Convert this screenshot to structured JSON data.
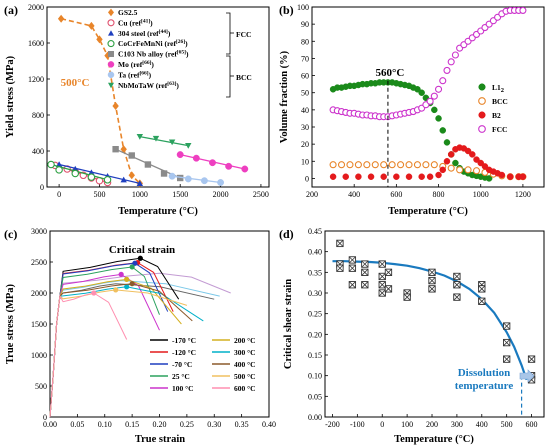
{
  "chart_data": [
    {
      "panel": "(a)",
      "type": "scatter",
      "xlabel": "Temperature (°C)",
      "ylabel": "Yield stress (MPa)",
      "xlim": [
        -150,
        2600
      ],
      "ylim": [
        0,
        2000
      ],
      "xticks": [
        "0",
        "500",
        "1000",
        "1500",
        "2000",
        "2500"
      ],
      "xtick_values": [
        0,
        500,
        1000,
        1500,
        2000,
        2500
      ],
      "yticks": [
        "0",
        "400",
        "800",
        "1200",
        "1600",
        "2000"
      ],
      "ytick_values": [
        0,
        400,
        800,
        1200,
        1600,
        2000
      ],
      "annotations": [
        {
          "text": "500°C",
          "color": "#e8852a"
        }
      ],
      "group_labels": [
        {
          "text": "FCC"
        },
        {
          "text": "BCC"
        }
      ],
      "series": [
        {
          "name": "GS2.5",
          "marker": "diamond",
          "color": "#e8852a",
          "dashed_trend": true,
          "x": [
            25,
            400,
            500,
            600,
            700,
            800,
            900,
            1000
          ],
          "y": [
            1870,
            1790,
            1640,
            1460,
            900,
            420,
            130,
            40
          ]
        },
        {
          "name": "Cu (ref[41])",
          "marker": "circle-open",
          "color": "#e0506e",
          "x": [
            -50,
            100,
            200,
            300,
            400,
            500,
            600
          ],
          "y": [
            240,
            200,
            170,
            130,
            100,
            70,
            50
          ]
        },
        {
          "name": "304 steel (ref[44])",
          "marker": "triangle",
          "color": "#1f3fbf",
          "x": [
            0,
            200,
            400,
            600,
            800,
            1000
          ],
          "y": [
            250,
            200,
            160,
            120,
            80,
            40
          ]
        },
        {
          "name": "CoCrFeMnNi (ref[26])",
          "marker": "circle-open",
          "color": "#2ea043",
          "x": [
            -100,
            0,
            200,
            400,
            600
          ],
          "y": [
            250,
            190,
            150,
            110,
            80
          ]
        },
        {
          "name": "C103 Nb alloy (ref[65])",
          "marker": "square",
          "color": "#8a8a8a",
          "x": [
            700,
            900,
            1100,
            1300,
            1500
          ],
          "y": [
            420,
            350,
            250,
            150,
            100
          ]
        },
        {
          "name": "Mo (ref[66])",
          "marker": "circle",
          "color": "#ee3fc0",
          "x": [
            1500,
            1700,
            1900,
            2100,
            2300
          ],
          "y": [
            360,
            320,
            270,
            230,
            200
          ]
        },
        {
          "name": "Ta (ref[66])",
          "marker": "circle",
          "color": "#a8c6ef",
          "x": [
            1400,
            1600,
            1800,
            2000
          ],
          "y": [
            120,
            90,
            70,
            50
          ]
        },
        {
          "name": "NbMoTaW (ref[63])",
          "marker": "triangle-down",
          "color": "#2ca25f",
          "x": [
            1000,
            1200,
            1400,
            1600
          ],
          "y": [
            560,
            540,
            500,
            460
          ]
        }
      ],
      "legend_entries": [
        {
          "base": "GS2.5",
          "sup": ""
        },
        {
          "base": "Cu (ref",
          "sup": "[41]",
          "tail": ")"
        },
        {
          "base": "304 steel (ref",
          "sup": "[44]",
          "tail": ")"
        },
        {
          "base": "CoCrFeMnNi (ref",
          "sup": "[26]",
          "tail": ")"
        },
        {
          "base": "C103 Nb alloy (ref",
          "sup": "[65]",
          "tail": ")"
        },
        {
          "base": "Mo (ref",
          "sup": "[66]",
          "tail": ")"
        },
        {
          "base": "Ta (ref",
          "sup": "[66]",
          "tail": ")"
        },
        {
          "base": "NbMoTaW (ref",
          "sup": "[63]",
          "tail": ")"
        }
      ]
    },
    {
      "panel": "(b)",
      "type": "scatter",
      "xlabel": "Temperature (°C)",
      "ylabel": "Volume fraction (%)",
      "xlim": [
        200,
        1300
      ],
      "ylim": [
        -5,
        100
      ],
      "xticks": [
        "200",
        "400",
        "600",
        "800",
        "1000",
        "1200"
      ],
      "xtick_values": [
        200,
        400,
        600,
        800,
        1000,
        1200
      ],
      "yticks": [
        "0",
        "10",
        "20",
        "30",
        "40",
        "50",
        "60",
        "70",
        "80",
        "90",
        "100"
      ],
      "ytick_values": [
        0,
        10,
        20,
        30,
        40,
        50,
        60,
        70,
        80,
        90,
        100
      ],
      "annotations": [
        {
          "text": "560°C",
          "x": 560
        }
      ],
      "series": [
        {
          "name": "L1",
          "sub": "2",
          "color": "#1a8a1a",
          "marker": "circle",
          "x": [
            300,
            320,
            340,
            360,
            380,
            400,
            420,
            440,
            460,
            480,
            500,
            520,
            540,
            560,
            580,
            600,
            620,
            640,
            660,
            680,
            700,
            720,
            740,
            760,
            780,
            800,
            820,
            840,
            860,
            880,
            900,
            920,
            940,
            960,
            980,
            1000,
            1020,
            1040
          ],
          "y": [
            52,
            53,
            53,
            53.5,
            54,
            54,
            54.5,
            55,
            55,
            55.5,
            55.5,
            56,
            56,
            56,
            56,
            55.5,
            55,
            54.5,
            54,
            53,
            52,
            50,
            47,
            44,
            40,
            35,
            28,
            21,
            14,
            9,
            6,
            4,
            3,
            2,
            1.5,
            1,
            0.5,
            0
          ]
        },
        {
          "name": "BCC",
          "color": "#e8852a",
          "marker": "circle-open",
          "x": [
            300,
            340,
            380,
            420,
            460,
            500,
            540,
            580,
            620,
            660,
            700,
            740,
            780,
            820,
            860,
            900,
            940,
            980,
            1020,
            1060,
            1100,
            1140,
            1180,
            1200
          ],
          "y": [
            8,
            8,
            8,
            8,
            8,
            8,
            8,
            8,
            8,
            8,
            8,
            8,
            8,
            7,
            6,
            5,
            5,
            4.5,
            3.5,
            2.5,
            1.5,
            1,
            1,
            1
          ]
        },
        {
          "name": "B2",
          "color": "#e41a1c",
          "marker": "circle",
          "x": [
            300,
            360,
            420,
            480,
            540,
            600,
            660,
            720,
            760,
            800,
            820,
            840,
            860,
            880,
            900,
            920,
            940,
            960,
            980,
            1000,
            1020,
            1040,
            1060,
            1080,
            1100,
            1140,
            1180,
            1200
          ],
          "y": [
            1,
            1,
            1,
            1,
            1,
            1,
            1,
            1,
            1,
            2,
            5,
            10,
            14,
            17,
            18,
            17.5,
            16,
            14,
            11,
            9,
            7,
            5,
            4,
            3,
            2,
            1,
            1,
            1
          ]
        },
        {
          "name": "FCC",
          "color": "#cc33cc",
          "marker": "circle-open",
          "x": [
            300,
            320,
            340,
            360,
            380,
            400,
            420,
            440,
            460,
            480,
            500,
            520,
            540,
            560,
            580,
            600,
            620,
            640,
            660,
            680,
            700,
            720,
            740,
            760,
            780,
            800,
            820,
            840,
            860,
            880,
            900,
            920,
            940,
            960,
            980,
            1000,
            1020,
            1040,
            1060,
            1080,
            1100,
            1120,
            1140,
            1160,
            1180,
            1200
          ],
          "y": [
            40,
            39.5,
            39,
            38.5,
            38,
            38,
            37.5,
            37,
            37,
            36.5,
            36.5,
            36,
            36,
            36,
            36.5,
            37,
            37.5,
            38,
            38.5,
            39,
            40,
            41,
            43,
            45,
            48,
            52,
            57,
            63,
            68,
            72,
            76,
            78,
            80,
            82,
            84,
            86,
            88,
            90,
            92,
            94,
            96,
            97.5,
            98,
            98,
            98,
            98
          ]
        }
      ]
    },
    {
      "panel": "(c)",
      "type": "line",
      "xlabel": "True strain",
      "ylabel": "True stress (MPa)",
      "xlim": [
        0,
        0.4
      ],
      "ylim": [
        0,
        3000
      ],
      "xticks": [
        "0.00",
        "0.05",
        "0.10",
        "0.15",
        "0.20",
        "0.25",
        "0.30",
        "0.35",
        "0.40"
      ],
      "xtick_values": [
        0,
        0.05,
        0.1,
        0.15,
        0.2,
        0.25,
        0.3,
        0.35,
        0.4
      ],
      "yticks": [
        "0",
        "500",
        "1000",
        "1500",
        "2000",
        "2500",
        "3000"
      ],
      "ytick_values": [
        0,
        500,
        1000,
        1500,
        2000,
        2500,
        3000
      ],
      "annotations": [
        {
          "text": "Critical strain"
        }
      ],
      "series": [
        {
          "name": "-170 °C",
          "color": "#000000",
          "peak_x": 0.165,
          "peak_y": 2560,
          "end_x": 0.235,
          "end_y": 1900
        },
        {
          "name": "-120 °C",
          "color": "#e41a1c",
          "peak_x": 0.16,
          "peak_y": 2490,
          "end_x": 0.225,
          "end_y": 1700
        },
        {
          "name": "-70 °C",
          "color": "#1f3fbf",
          "peak_x": 0.155,
          "peak_y": 2480,
          "end_x": 0.215,
          "end_y": 1700
        },
        {
          "name": "25 °C",
          "color": "#2ca25f",
          "peak_x": 0.15,
          "peak_y": 2420,
          "end_x": 0.2,
          "end_y": 1650
        },
        {
          "name": "100 °C",
          "color": "#cc33cc",
          "peak_x": 0.13,
          "peak_y": 2300,
          "end_x": 0.2,
          "end_y": 1400
        },
        {
          "name": "200 °C",
          "color": "#d4b020",
          "peak_x": 0.14,
          "peak_y": 2220,
          "end_x": 0.24,
          "end_y": 1500
        },
        {
          "name": "300 °C",
          "color": "#00b0c8",
          "peak_x": 0.14,
          "peak_y": 2100,
          "end_x": 0.28,
          "end_y": 1550
        },
        {
          "name": "400 °C",
          "color": "#8b5a2b",
          "peak_x": 0.15,
          "peak_y": 2150,
          "end_x": 0.26,
          "end_y": 1550
        },
        {
          "name": "500 °C",
          "color": "#f0c060",
          "peak_x": 0.12,
          "peak_y": 2050,
          "end_x": 0.25,
          "end_y": 1800
        },
        {
          "name": "600 °C",
          "color": "#ff8fb0",
          "peak_x": 0.08,
          "peak_y": 2000,
          "end_x": 0.14,
          "end_y": 1250
        }
      ],
      "extra_series_colors": [
        "#c39bd3",
        "#7bc8e8",
        "#666666"
      ],
      "extra_series": [
        {
          "color": "#c39bd3",
          "peak_x": 0.2,
          "peak_y": 2320,
          "end_x": 0.33,
          "end_y": 2000
        },
        {
          "color": "#7bc8e8",
          "peak_x": 0.13,
          "peak_y": 2200,
          "end_x": 0.31,
          "end_y": 1950
        },
        {
          "color": "#666666",
          "peak_x": 0.12,
          "peak_y": 2150,
          "end_x": 0.3,
          "end_y": 1900
        }
      ]
    },
    {
      "panel": "(d)",
      "type": "scatter",
      "xlabel": "Temperature (°C)",
      "ylabel": "Critical shear strain",
      "xlim": [
        -230,
        650
      ],
      "ylim": [
        0,
        0.45
      ],
      "xticks": [
        "-200",
        "-100",
        "0",
        "100",
        "200",
        "300",
        "400",
        "500",
        "600"
      ],
      "xtick_values": [
        -200,
        -100,
        0,
        100,
        200,
        300,
        400,
        500,
        600
      ],
      "yticks": [
        "0.00",
        "0.05",
        "0.10",
        "0.15",
        "0.20",
        "0.25",
        "0.30",
        "0.35",
        "0.40",
        "0.45"
      ],
      "ytick_values": [
        0,
        0.05,
        0.1,
        0.15,
        0.2,
        0.25,
        0.3,
        0.35,
        0.4,
        0.45
      ],
      "annotations": [
        {
          "text_lines": [
            "Dissolution",
            "temperature"
          ],
          "color": "#1a7abf",
          "x": 560
        }
      ],
      "points": {
        "x": [
          -170,
          -170,
          -170,
          -120,
          -120,
          -120,
          -70,
          -70,
          -70,
          0,
          0,
          0,
          0,
          25,
          25,
          100,
          100,
          200,
          200,
          200,
          300,
          300,
          300,
          400,
          400,
          400,
          500,
          500,
          500,
          600,
          600,
          600
        ],
        "y": [
          0.42,
          0.37,
          0.36,
          0.38,
          0.36,
          0.32,
          0.37,
          0.35,
          0.32,
          0.37,
          0.34,
          0.32,
          0.3,
          0.35,
          0.31,
          0.3,
          0.29,
          0.35,
          0.33,
          0.31,
          0.34,
          0.32,
          0.29,
          0.32,
          0.31,
          0.28,
          0.22,
          0.18,
          0.14,
          0.14,
          0.1,
          0.09
        ]
      },
      "fit_curve": {
        "color": "#1a7abf",
        "x": [
          -200,
          -150,
          -100,
          -50,
          0,
          50,
          100,
          150,
          200,
          250,
          300,
          350,
          400,
          450,
          500,
          530,
          560,
          580
        ],
        "y": [
          0.377,
          0.377,
          0.376,
          0.375,
          0.373,
          0.37,
          0.366,
          0.36,
          0.352,
          0.342,
          0.328,
          0.31,
          0.285,
          0.252,
          0.205,
          0.17,
          0.125,
          0.09
        ]
      }
    }
  ]
}
